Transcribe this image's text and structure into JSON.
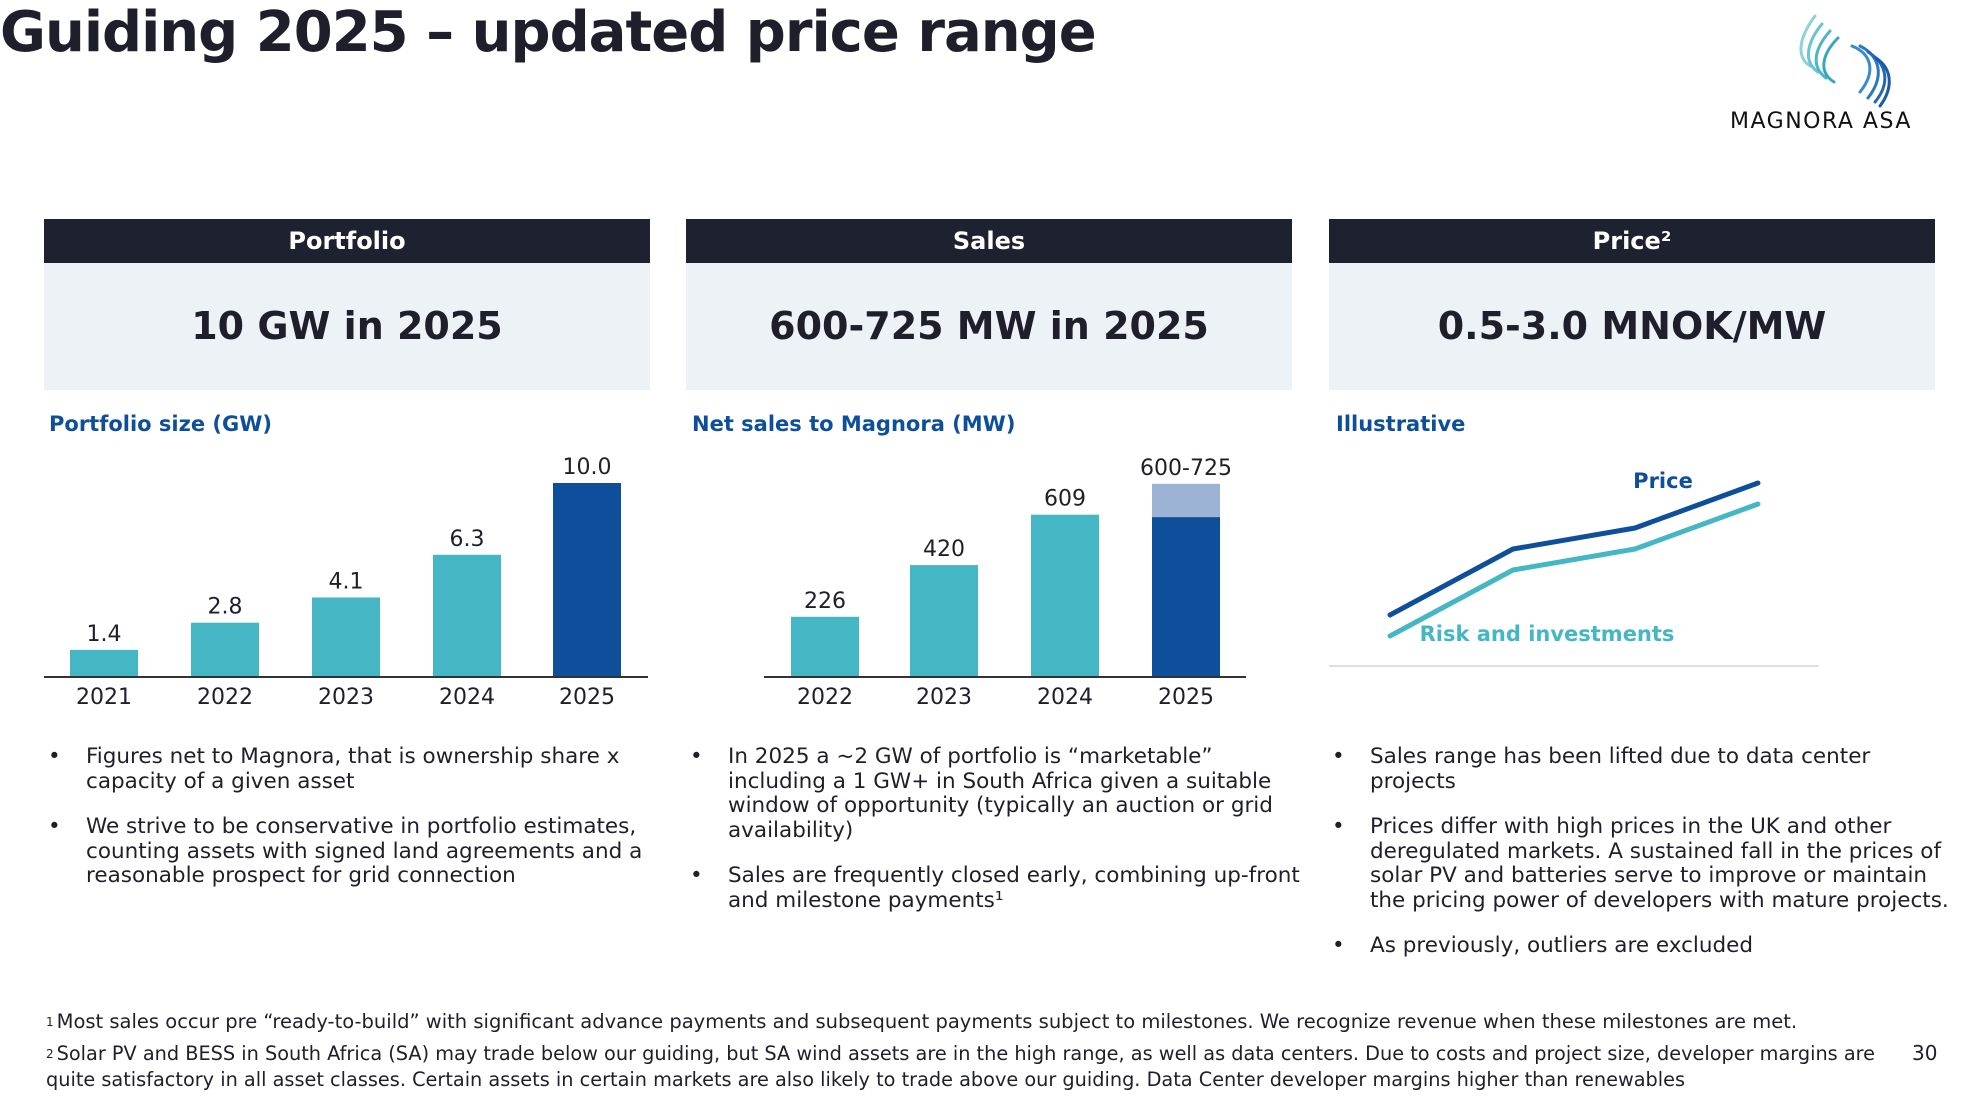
{
  "title": "Guiding 2025 – updated price range",
  "logo": {
    "text": "MAGNORA ASA"
  },
  "columns": [
    {
      "header": "Portfolio",
      "kpi": "10 GW in 2025",
      "chart_title": "Portfolio size (GW)",
      "bullets": [
        "Figures net to Magnora, that is ownership share x capacity of a given asset",
        "We strive to be conservative in portfolio estimates, counting assets with signed land agreements and a reasonable prospect for grid connection"
      ]
    },
    {
      "header": "Sales",
      "kpi": "600-725 MW in 2025",
      "chart_title": "Net sales to Magnora (MW)",
      "bullets": [
        "In 2025 a ~2 GW of portfolio is “marketable” including a 1 GW+ in South Africa given a suitable window of opportunity (typically an auction or grid availability)",
        "Sales are frequently closed early, combining up-front and milestone payments¹"
      ]
    },
    {
      "header": "Price²",
      "kpi": "0.5-3.0 MNOK/MW",
      "chart_title": "Illustrative",
      "bullets": [
        "Sales range has been lifted due to data center projects",
        "Prices differ with high prices in the UK and other deregulated markets. A sustained fall in the prices of solar PV and batteries serve to improve or maintain the pricing power of developers with mature projects.",
        "As previously, outliers are excluded"
      ]
    }
  ],
  "chart_data": [
    {
      "type": "bar",
      "title": "Portfolio size (GW)",
      "categories": [
        "2021",
        "2022",
        "2023",
        "2024",
        "2025"
      ],
      "values": [
        1.4,
        2.8,
        4.1,
        6.3,
        10.0
      ],
      "labels": [
        "1.4",
        "2.8",
        "4.1",
        "6.3",
        "10.0"
      ],
      "highlight": "2025",
      "colors": {
        "base": "#45b6c4",
        "highlight": "#0e4f9c"
      }
    },
    {
      "type": "bar",
      "title": "Net sales to Magnora (MW)",
      "categories": [
        "2022",
        "2023",
        "2024",
        "2025"
      ],
      "values": [
        226,
        420,
        609,
        600
      ],
      "range_top": [
        null,
        null,
        null,
        725
      ],
      "labels": [
        "226",
        "420",
        "609",
        "600-725"
      ],
      "colors": {
        "base": "#45b6c4",
        "highlight": "#0e4f9c",
        "range": "#9db3d4"
      }
    },
    {
      "type": "line",
      "title": "Illustrative",
      "x": [
        1,
        2,
        3,
        4
      ],
      "series": [
        {
          "name": "Price",
          "values": [
            1.0,
            2.1,
            2.45,
            3.2
          ],
          "color": "#0e4f9c"
        },
        {
          "name": "Risk and investments",
          "values": [
            0.65,
            1.75,
            2.1,
            2.85
          ],
          "color": "#45b6c4"
        }
      ]
    }
  ],
  "footnotes": [
    {
      "mark": "1",
      "text": "Most sales occur pre “ready-to-build” with significant advance payments and subsequent payments subject to milestones. We recognize revenue when these milestones are met."
    },
    {
      "mark": "2",
      "text": "Solar PV and BESS in South Africa (SA) may trade below our guiding, but SA wind assets are in the high range, as well as data centers. Due to costs and project size, developer margins are quite satisfactory in all asset classes. Certain assets in certain markets are also likely to trade above our guiding. Data Center developer margins higher than renewables"
    }
  ],
  "page_number": "30"
}
